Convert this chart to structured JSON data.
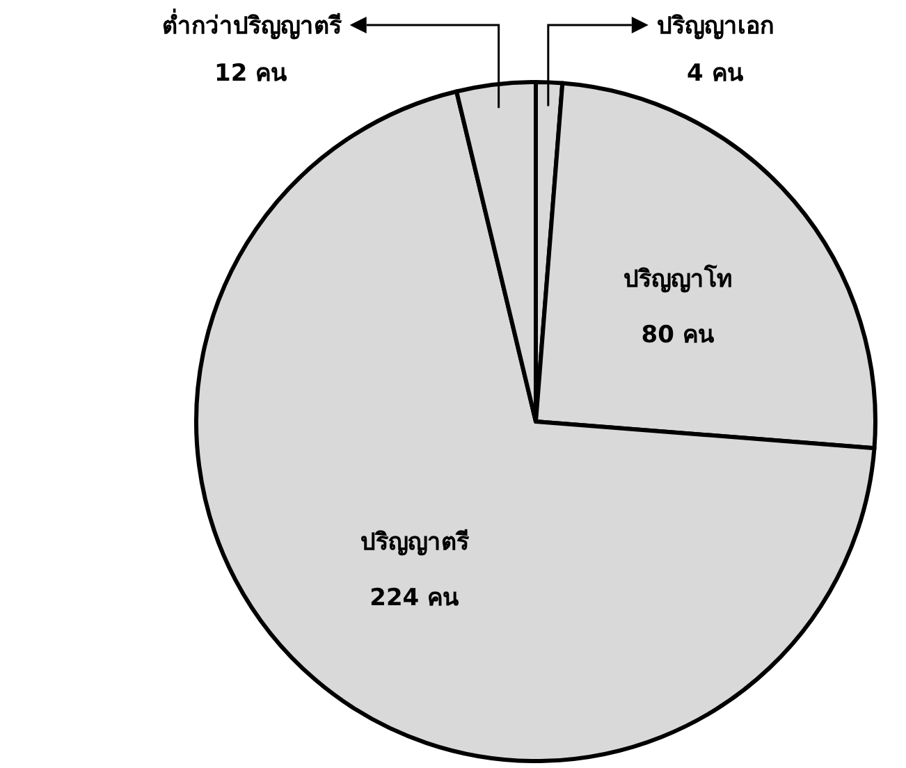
{
  "chart_data": {
    "type": "pie",
    "categories": [
      "ปริญญาเอก",
      "ปริญญาโท",
      "ปริญญาตรี",
      "ต่ำกว่าปริญญาตรี"
    ],
    "values": [
      4,
      80,
      224,
      12
    ],
    "value_labels": [
      "4 คน",
      "80 คน",
      "224 คน",
      "12 คน"
    ],
    "colors": [
      "#d9d9d9",
      "#d9d9d9",
      "#d9d9d9",
      "#d9d9d9"
    ]
  }
}
